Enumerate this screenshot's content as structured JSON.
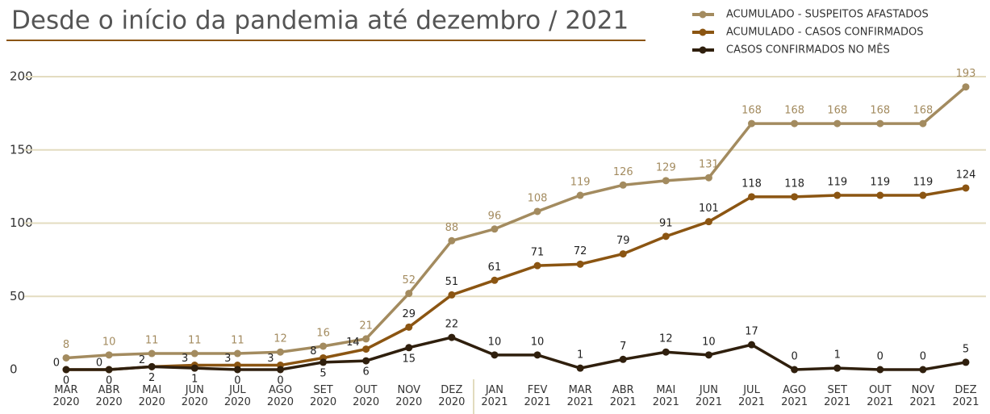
{
  "chart_data": {
    "type": "line",
    "title": "Desde o início da pandemia até dezembro / 2021",
    "categories": [
      "MAR\n2020",
      "ABR\n2020",
      "MAI\n2020",
      "JUN\n2020",
      "JUL\n2020",
      "AGO\n2020",
      "SET\n2020",
      "OUT\n2020",
      "NOV\n2020",
      "DEZ\n2020",
      "JAN\n2021",
      "FEV\n2021",
      "MAR\n2021",
      "ABR\n2021",
      "MAI\n2021",
      "JUN\n2021",
      "JUL\n2021",
      "AGO\n2021",
      "SET\n2021",
      "OUT\n2021",
      "NOV\n2021",
      "DEZ\n2021"
    ],
    "series": [
      {
        "name": "ACUMULADO - SUSPEITOS AFASTADOS",
        "color": "#a38b5f",
        "values": [
          8,
          10,
          11,
          11,
          11,
          12,
          16,
          21,
          52,
          88,
          96,
          108,
          119,
          126,
          129,
          131,
          168,
          168,
          168,
          168,
          168,
          193
        ]
      },
      {
        "name": "ACUMULADO - CASOS CONFIRMADOS",
        "color": "#8b5512",
        "values": [
          0,
          0,
          2,
          3,
          3,
          3,
          8,
          14,
          29,
          51,
          61,
          71,
          72,
          79,
          91,
          101,
          118,
          118,
          119,
          119,
          119,
          124
        ]
      },
      {
        "name": "CASOS CONFIRMADOS NO MÊS",
        "color": "#2f1f0d",
        "values": [
          0,
          0,
          2,
          1,
          0,
          0,
          5,
          6,
          15,
          22,
          10,
          10,
          1,
          7,
          12,
          10,
          17,
          0,
          1,
          0,
          0,
          5
        ]
      }
    ],
    "ylim": [
      0,
      200
    ],
    "yticks": [
      0,
      50,
      100,
      150,
      200
    ],
    "grid": true,
    "legend": "top-right"
  }
}
